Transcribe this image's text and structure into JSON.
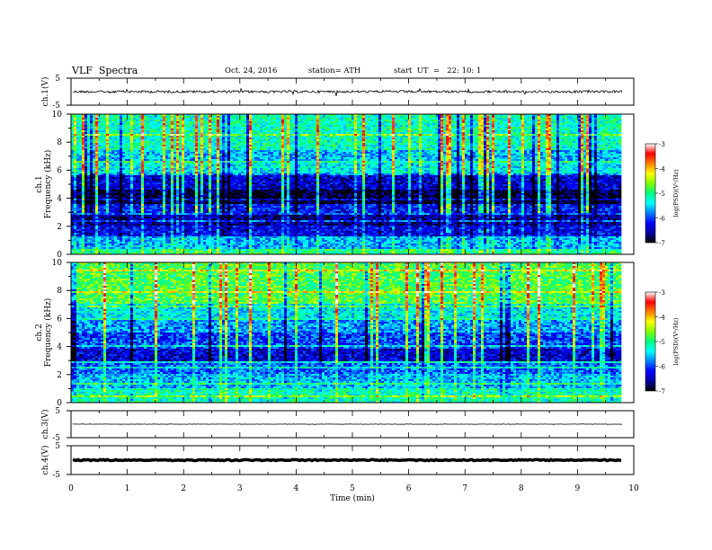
{
  "header": {
    "title": "VLF  Spectra",
    "date": "Oct. 24, 2016",
    "station": "station= ATH",
    "start": "start  UT  =   22: 10: 1"
  },
  "colors": {
    "spectrogram_scale": [
      "#000000",
      "#0000a0",
      "#0000ff",
      "#0080ff",
      "#00ffff",
      "#00ff80",
      "#80ff00",
      "#ffff00",
      "#ff8000",
      "#ff0000",
      "#ffffff"
    ]
  },
  "chart_data": [
    {
      "type": "line",
      "panel": "ch1-voltage",
      "ylabel": "ch.1(V)",
      "yticks": [
        "5",
        "-5"
      ],
      "ylim": [
        -5,
        5
      ],
      "trace_level": 0,
      "noise_amplitude": 0.45
    },
    {
      "type": "heatmap",
      "panel": "ch1-spectrogram",
      "ylabel_channel": "ch.1",
      "ylabel": "Frequency  (kHz)",
      "yticks": [
        "0",
        "2",
        "4",
        "6",
        "8",
        "10"
      ],
      "ylim": [
        0,
        10
      ],
      "colorbar": {
        "label": "log(PSD)(V²/Hz)",
        "ticks": [
          "-3",
          "-4",
          "-5",
          "-6",
          "-7"
        ],
        "range": [
          -7,
          -3
        ]
      },
      "bands": [
        {
          "from": 0.0,
          "to": 0.4,
          "level": -5.0
        },
        {
          "from": 0.4,
          "to": 1.3,
          "level": -5.6
        },
        {
          "from": 1.3,
          "to": 2.0,
          "level": -6.3
        },
        {
          "from": 2.0,
          "to": 3.0,
          "level": -6.6
        },
        {
          "from": 3.0,
          "to": 3.6,
          "level": -6.2
        },
        {
          "from": 3.6,
          "to": 4.6,
          "level": -6.9
        },
        {
          "from": 4.6,
          "to": 5.8,
          "level": -6.4
        },
        {
          "from": 5.8,
          "to": 6.5,
          "level": -5.4
        },
        {
          "from": 6.5,
          "to": 7.4,
          "level": -5.6
        },
        {
          "from": 7.4,
          "to": 10.0,
          "level": -5.2
        }
      ]
    },
    {
      "type": "heatmap",
      "panel": "ch2-spectrogram",
      "ylabel_channel": "ch.2",
      "ylabel": "Frequency  (kHz)",
      "yticks": [
        "0",
        "2",
        "4",
        "6",
        "8",
        "10"
      ],
      "ylim": [
        0,
        10
      ],
      "colorbar": {
        "label": "log(PSD)(V²/Hz)",
        "ticks": [
          "-3",
          "-4",
          "-5",
          "-6",
          "-7"
        ],
        "range": [
          -7,
          -3
        ]
      },
      "bands": [
        {
          "from": 0.0,
          "to": 1.0,
          "level": -5.2
        },
        {
          "from": 1.0,
          "to": 2.0,
          "level": -5.6
        },
        {
          "from": 2.0,
          "to": 3.0,
          "level": -5.9
        },
        {
          "from": 3.0,
          "to": 3.8,
          "level": -6.4
        },
        {
          "from": 3.8,
          "to": 5.0,
          "level": -6.0
        },
        {
          "from": 5.0,
          "to": 6.0,
          "level": -5.7
        },
        {
          "from": 6.0,
          "to": 7.0,
          "level": -5.4
        },
        {
          "from": 7.0,
          "to": 10.0,
          "level": -4.8
        }
      ]
    },
    {
      "type": "line",
      "panel": "ch3-voltage",
      "ylabel": "ch.3(V)",
      "yticks": [
        "5",
        "-5"
      ],
      "ylim": [
        -5,
        5
      ],
      "trace_level": 0,
      "noise_amplitude": 0.06
    },
    {
      "type": "line",
      "panel": "ch4-voltage",
      "ylabel": "ch.4(V)",
      "yticks": [
        "5",
        "-5"
      ],
      "ylim": [
        -5,
        5
      ],
      "trace_level": 0,
      "noise_amplitude": 0.2
    }
  ],
  "xaxis": {
    "label": "Time  (min)",
    "ticks": [
      "0",
      "1",
      "2",
      "3",
      "4",
      "5",
      "6",
      "7",
      "8",
      "9",
      "10"
    ],
    "xlim": [
      0,
      10
    ],
    "data_end": 9.8
  }
}
